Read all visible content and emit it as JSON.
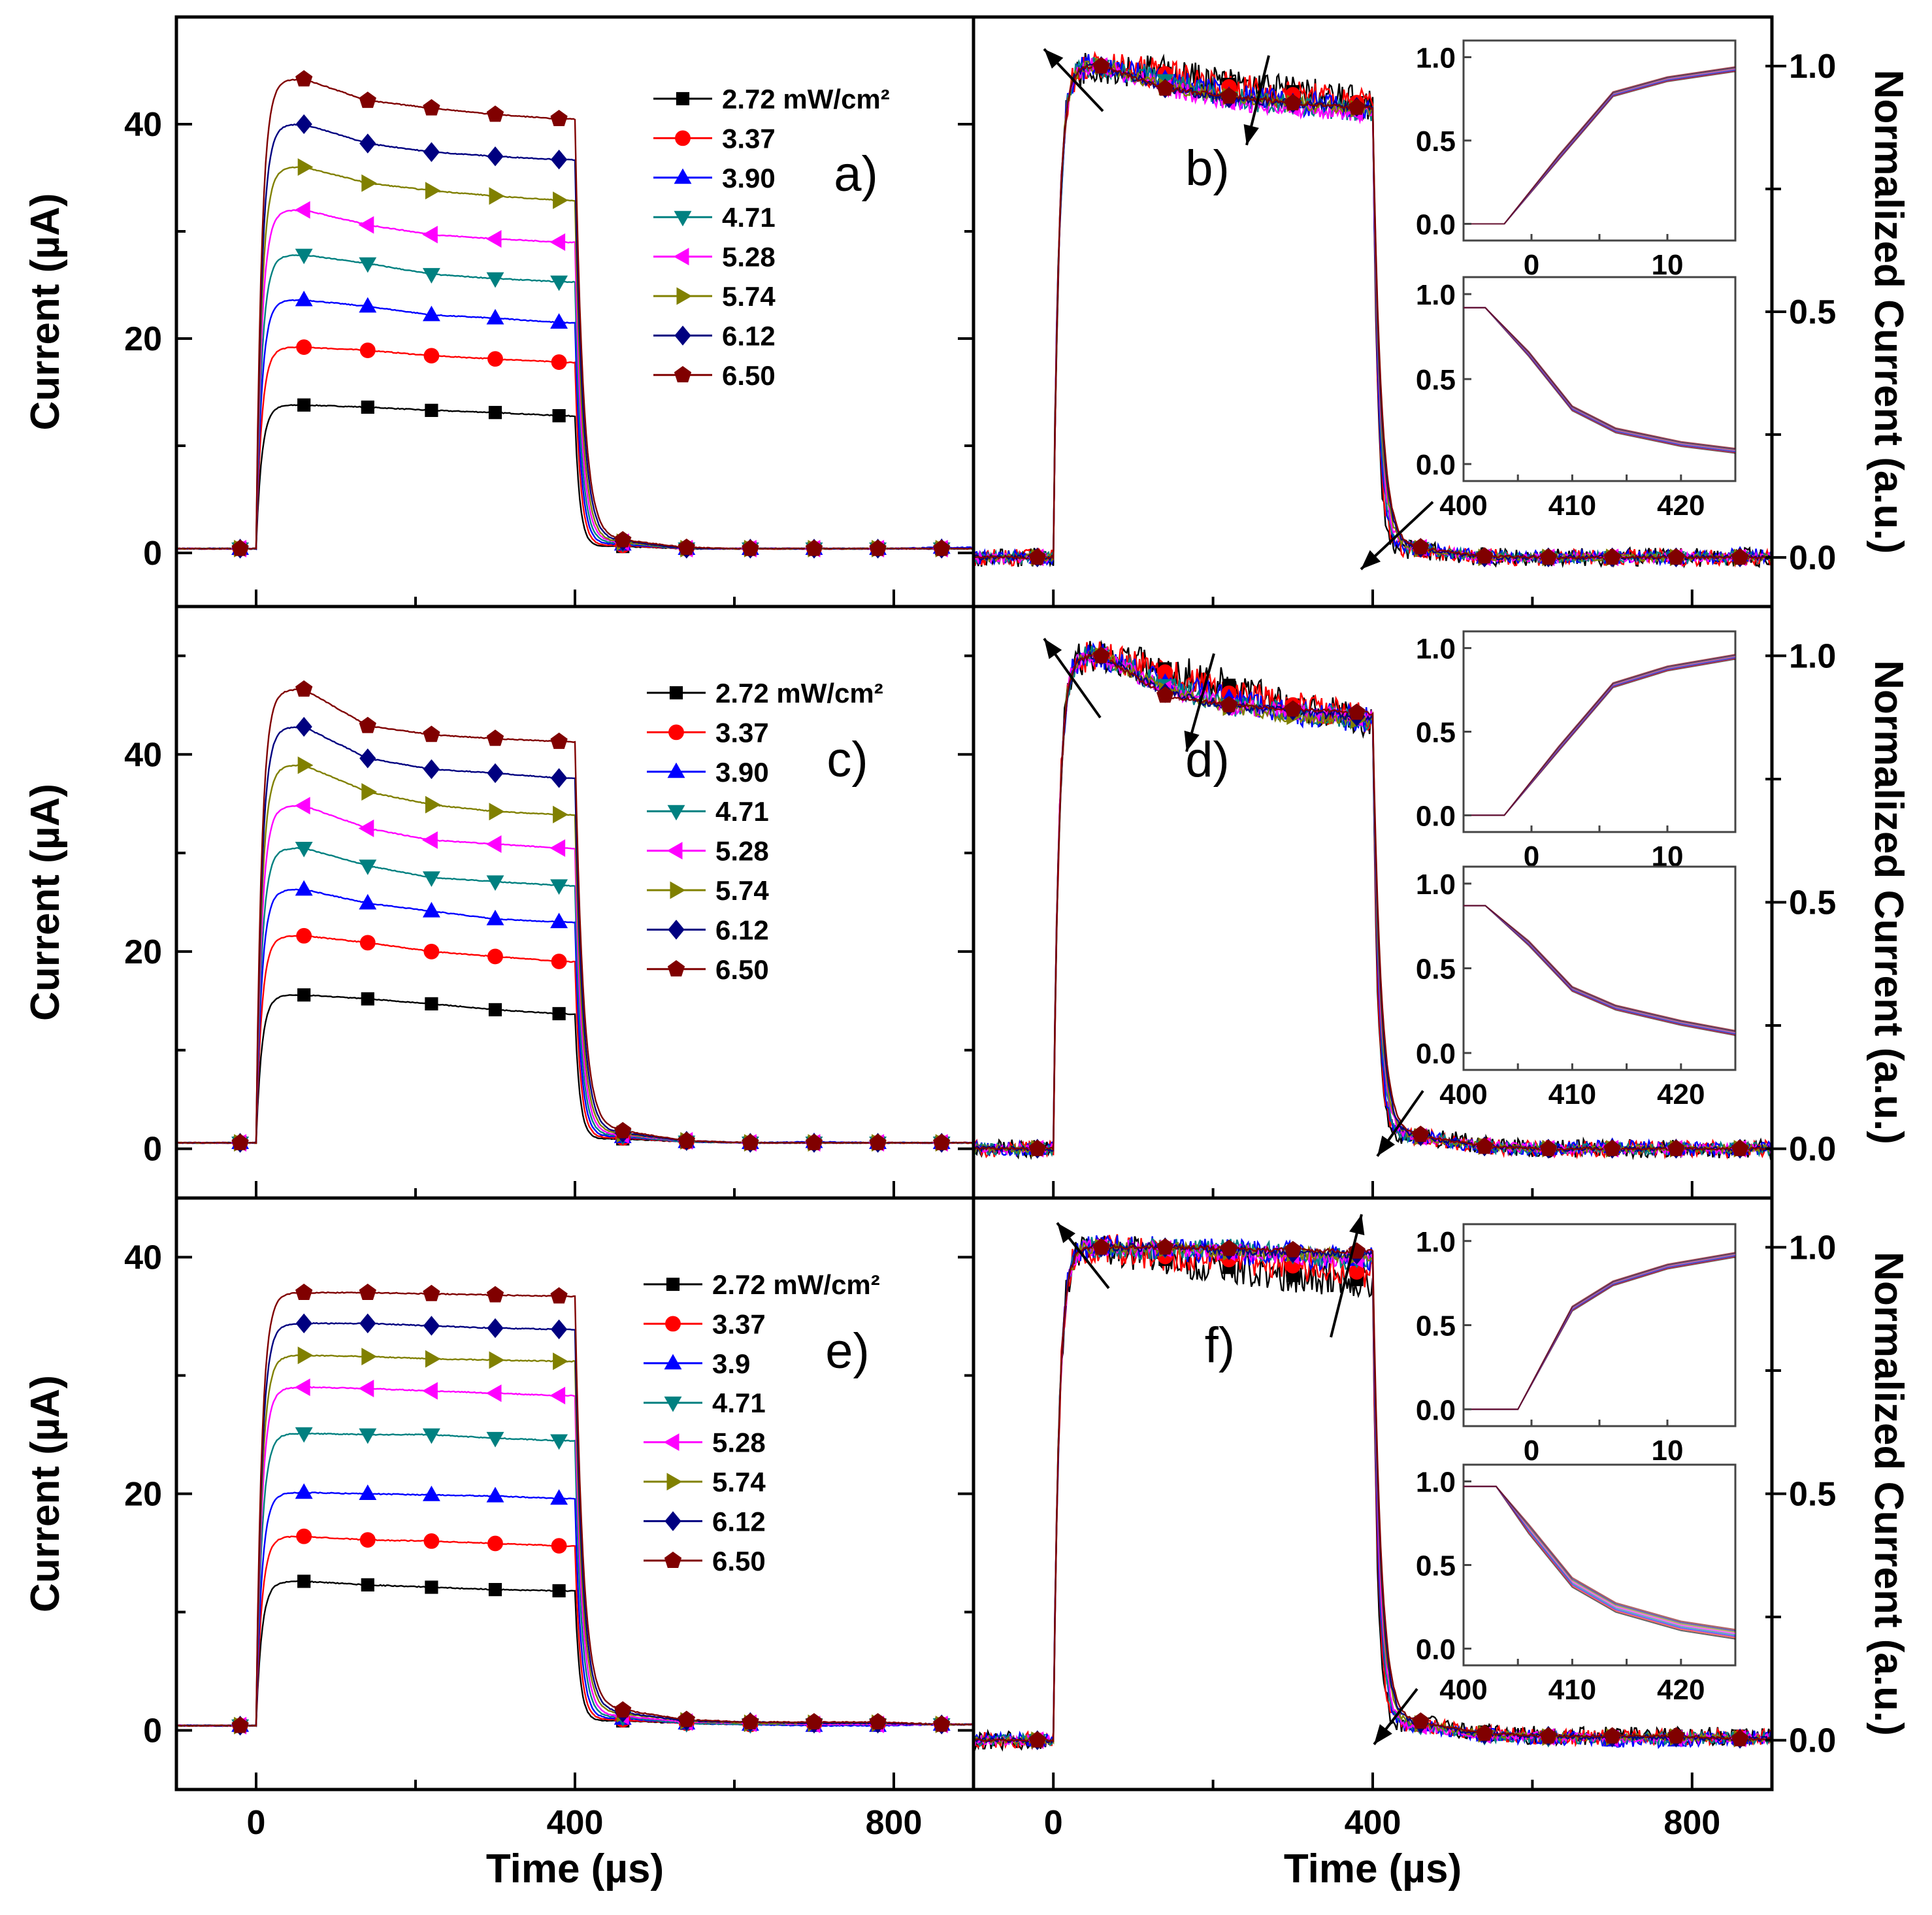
{
  "legend": {
    "names": [
      "2.72 mW/cm²",
      "3.37",
      "3.90",
      "4.71",
      "5.28",
      "5.74",
      "6.12",
      "6.50"
    ],
    "names_e": [
      "2.72 mW/cm²",
      "3.37",
      "3.9",
      "4.71",
      "5.28",
      "5.74",
      "6.12",
      "6.50"
    ],
    "colors": [
      "#000000",
      "#ff0000",
      "#0000ff",
      "#008080",
      "#ff00ff",
      "#808000",
      "#000080",
      "#800000"
    ],
    "markers": [
      "square",
      "circle",
      "triangle-up",
      "triangle-down",
      "triangle-left",
      "triangle-right",
      "diamond",
      "pentagon"
    ]
  },
  "chart_data": [
    {
      "panel": "a",
      "label": "a)",
      "type": "line",
      "xlabel": "Time (µs)",
      "ylabel": "Current (µA)",
      "xlim": [
        -100,
        900
      ],
      "ylim": [
        -5,
        50
      ],
      "xticks": [
        "0",
        "400",
        "800"
      ],
      "yticks": [
        "0",
        "20",
        "40"
      ],
      "x": [
        -20,
        60,
        140,
        220,
        300,
        380,
        460,
        540,
        620,
        700,
        780,
        860
      ],
      "series": [
        {
          "name": "2.72 mW/cm²",
          "values": [
            0.4,
            13.8,
            13.6,
            13.3,
            13.1,
            12.8,
            0.6,
            0.4,
            0.4,
            0.4,
            0.4,
            0.4
          ]
        },
        {
          "name": "3.37",
          "values": [
            0.4,
            19.2,
            18.9,
            18.4,
            18.1,
            17.8,
            0.7,
            0.4,
            0.4,
            0.4,
            0.4,
            0.4
          ]
        },
        {
          "name": "3.90",
          "values": [
            0.4,
            23.6,
            23.0,
            22.2,
            21.9,
            21.5,
            0.8,
            0.4,
            0.4,
            0.4,
            0.4,
            0.5
          ]
        },
        {
          "name": "4.71",
          "values": [
            0.4,
            27.8,
            27.0,
            26.0,
            25.6,
            25.3,
            0.9,
            0.4,
            0.4,
            0.4,
            0.4,
            0.4
          ]
        },
        {
          "name": "5.28",
          "values": [
            0.4,
            32.0,
            30.6,
            29.7,
            29.3,
            29.0,
            1.0,
            0.4,
            0.4,
            0.4,
            0.4,
            0.4
          ]
        },
        {
          "name": "5.74",
          "values": [
            0.4,
            36.0,
            34.5,
            33.8,
            33.3,
            32.9,
            1.0,
            0.4,
            0.4,
            0.4,
            0.4,
            0.4
          ]
        },
        {
          "name": "6.12",
          "values": [
            0.4,
            40.0,
            38.2,
            37.4,
            37.0,
            36.7,
            1.1,
            0.4,
            0.4,
            0.4,
            0.4,
            0.4
          ]
        },
        {
          "name": "6.50",
          "values": [
            0.4,
            44.2,
            42.2,
            41.5,
            40.9,
            40.5,
            1.2,
            0.5,
            0.4,
            0.4,
            0.4,
            0.4
          ]
        }
      ]
    },
    {
      "panel": "b",
      "label": "b)",
      "type": "line",
      "normalized_from": "a",
      "xlabel": "Time (µs)",
      "ylabel": "Normalized Current (a.u.)",
      "xlim": [
        -100,
        900
      ],
      "ylim": [
        -0.1,
        1.1
      ],
      "xticks": [
        "0",
        "400",
        "800"
      ],
      "yticks": [
        "0.0",
        "0.5",
        "1.0"
      ],
      "insets": [
        {
          "xlim": [
            -5,
            15
          ],
          "ylim": [
            -0.1,
            1.1
          ],
          "xticks": [
            "0",
            "10"
          ],
          "yticks": [
            "0.0",
            "0.5",
            "1.0"
          ],
          "x": [
            -5,
            -2,
            2,
            6,
            10,
            15
          ],
          "y": [
            0,
            0,
            0.4,
            0.78,
            0.87,
            0.93
          ]
        },
        {
          "xlim": [
            400,
            425
          ],
          "ylim": [
            -0.1,
            1.1
          ],
          "xticks": [
            "400",
            "410",
            "420"
          ],
          "yticks": [
            "0.0",
            "0.5",
            "1.0"
          ],
          "x": [
            400,
            402,
            406,
            410,
            414,
            420,
            425
          ],
          "y": [
            0.92,
            0.92,
            0.65,
            0.33,
            0.2,
            0.12,
            0.08
          ]
        }
      ]
    },
    {
      "panel": "c",
      "label": "c)",
      "type": "line",
      "xlabel": "Time (µs)",
      "ylabel": "Current (µA)",
      "xlim": [
        -100,
        900
      ],
      "ylim": [
        -5,
        55
      ],
      "xticks": [
        "0",
        "400",
        "800"
      ],
      "yticks": [
        "0",
        "20",
        "40"
      ],
      "x": [
        -20,
        60,
        140,
        220,
        300,
        380,
        460,
        540,
        620,
        700,
        780,
        860
      ],
      "series": [
        {
          "name": "2.72 mW/cm²",
          "values": [
            0.6,
            15.6,
            15.2,
            14.7,
            14.1,
            13.7,
            1.0,
            0.7,
            0.6,
            0.6,
            0.6,
            0.6
          ]
        },
        {
          "name": "3.37",
          "values": [
            0.6,
            21.6,
            20.9,
            20.0,
            19.5,
            19.0,
            1.1,
            0.7,
            0.6,
            0.6,
            0.6,
            0.6
          ]
        },
        {
          "name": "3.90",
          "values": [
            0.6,
            26.3,
            24.9,
            24.1,
            23.3,
            23.0,
            1.2,
            0.7,
            0.6,
            0.7,
            0.6,
            0.6
          ]
        },
        {
          "name": "4.71",
          "values": [
            0.6,
            30.5,
            28.7,
            27.5,
            27.1,
            26.7,
            1.3,
            0.7,
            0.6,
            0.6,
            0.6,
            0.6
          ]
        },
        {
          "name": "5.28",
          "values": [
            0.6,
            34.8,
            32.5,
            31.3,
            30.9,
            30.5,
            1.4,
            0.8,
            0.6,
            0.6,
            0.6,
            0.6
          ]
        },
        {
          "name": "5.74",
          "values": [
            0.6,
            38.9,
            36.2,
            34.9,
            34.2,
            33.9,
            1.5,
            0.8,
            0.6,
            0.6,
            0.6,
            0.6
          ]
        },
        {
          "name": "6.12",
          "values": [
            0.6,
            42.8,
            39.6,
            38.5,
            38.1,
            37.6,
            1.6,
            0.8,
            0.6,
            0.6,
            0.6,
            0.6
          ]
        },
        {
          "name": "6.50",
          "values": [
            0.6,
            46.6,
            42.9,
            42.0,
            41.6,
            41.3,
            1.8,
            0.8,
            0.6,
            0.6,
            0.6,
            0.6
          ]
        }
      ]
    },
    {
      "panel": "d",
      "label": "d)",
      "type": "line",
      "normalized_from": "c",
      "xlabel": "Time (µs)",
      "ylabel": "Normalized Current (a.u.)",
      "xlim": [
        -100,
        900
      ],
      "ylim": [
        -0.1,
        1.1
      ],
      "xticks": [
        "0",
        "400",
        "800"
      ],
      "yticks": [
        "0.0",
        "0.5",
        "1.0"
      ],
      "insets": [
        {
          "xlim": [
            -5,
            15
          ],
          "ylim": [
            -0.1,
            1.1
          ],
          "xticks": [
            "0",
            "10"
          ],
          "yticks": [
            "0.0",
            "0.5",
            "1.0"
          ],
          "x": [
            -5,
            -2,
            2,
            6,
            10,
            15
          ],
          "y": [
            0,
            0,
            0.4,
            0.78,
            0.88,
            0.95
          ]
        },
        {
          "xlim": [
            400,
            425
          ],
          "ylim": [
            -0.1,
            1.1
          ],
          "xticks": [
            "400",
            "410",
            "420"
          ],
          "yticks": [
            "0.0",
            "0.5",
            "1.0"
          ],
          "x": [
            400,
            402,
            406,
            410,
            414,
            420,
            425
          ],
          "y": [
            0.87,
            0.87,
            0.65,
            0.38,
            0.27,
            0.18,
            0.12
          ]
        }
      ]
    },
    {
      "panel": "e",
      "label": "e)",
      "type": "line",
      "xlabel": "Time (µs)",
      "ylabel": "Current (µA)",
      "xlim": [
        -100,
        900
      ],
      "ylim": [
        -5,
        45
      ],
      "xticks": [
        "0",
        "400",
        "800"
      ],
      "yticks": [
        "0",
        "20",
        "40"
      ],
      "x": [
        -20,
        60,
        140,
        220,
        300,
        380,
        460,
        540,
        620,
        700,
        780,
        860
      ],
      "series": [
        {
          "name": "2.72 mW/cm²",
          "values": [
            0.4,
            12.6,
            12.3,
            12.1,
            11.9,
            11.8,
            0.8,
            0.6,
            0.5,
            0.5,
            0.5,
            0.5
          ]
        },
        {
          "name": "3.37",
          "values": [
            0.4,
            16.4,
            16.1,
            16.0,
            15.8,
            15.6,
            0.9,
            0.6,
            0.5,
            0.5,
            0.5,
            0.5
          ]
        },
        {
          "name": "3.9",
          "values": [
            0.4,
            20.1,
            20.0,
            19.9,
            19.8,
            19.6,
            1.0,
            0.6,
            0.5,
            0.4,
            0.4,
            0.5
          ]
        },
        {
          "name": "4.71",
          "values": [
            0.4,
            25.1,
            25.0,
            25.0,
            24.7,
            24.5,
            1.1,
            0.6,
            0.5,
            0.5,
            0.5,
            0.5
          ]
        },
        {
          "name": "5.28",
          "values": [
            0.4,
            29.0,
            28.9,
            28.7,
            28.5,
            28.3,
            1.2,
            0.7,
            0.6,
            0.5,
            0.5,
            0.5
          ]
        },
        {
          "name": "5.74",
          "values": [
            0.4,
            31.7,
            31.6,
            31.4,
            31.3,
            31.2,
            1.4,
            0.8,
            0.6,
            0.6,
            0.6,
            0.5
          ]
        },
        {
          "name": "6.12",
          "values": [
            0.4,
            34.4,
            34.4,
            34.2,
            34.0,
            33.9,
            1.5,
            0.8,
            0.7,
            0.6,
            0.6,
            0.5
          ]
        },
        {
          "name": "6.50",
          "values": [
            0.4,
            37.0,
            37.0,
            36.9,
            36.8,
            36.7,
            1.7,
            0.9,
            0.7,
            0.7,
            0.7,
            0.5
          ]
        }
      ]
    },
    {
      "panel": "f",
      "label": "f)",
      "type": "line",
      "normalized_from": "e",
      "xlabel": "Time (µs)",
      "ylabel": "Normalized Current (a.u.)",
      "xlim": [
        -100,
        900
      ],
      "ylim": [
        -0.1,
        1.1
      ],
      "xticks": [
        "0",
        "400",
        "800"
      ],
      "yticks": [
        "0.0",
        "0.5",
        "1.0"
      ],
      "insets": [
        {
          "xlim": [
            -5,
            15
          ],
          "ylim": [
            -0.1,
            1.1
          ],
          "xticks": [
            "0",
            "10"
          ],
          "yticks": [
            "0.0",
            "0.5",
            "1.0"
          ],
          "x": [
            -5,
            -1,
            3,
            6,
            10,
            15
          ],
          "y": [
            0,
            0,
            0.6,
            0.75,
            0.85,
            0.92
          ]
        },
        {
          "xlim": [
            400,
            425
          ],
          "ylim": [
            -0.1,
            1.1
          ],
          "xticks": [
            "400",
            "410",
            "420"
          ],
          "yticks": [
            "0.0",
            "0.5",
            "1.0"
          ],
          "x": [
            400,
            403,
            406,
            410,
            414,
            420,
            425
          ],
          "y": [
            0.97,
            0.97,
            0.72,
            0.4,
            0.25,
            0.14,
            0.09
          ]
        }
      ]
    }
  ]
}
